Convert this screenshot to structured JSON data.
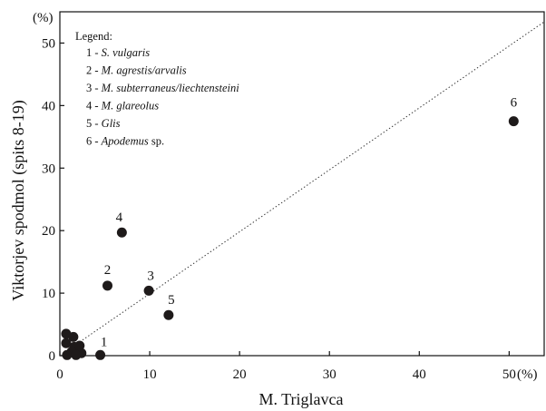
{
  "chart_data": {
    "type": "scatter",
    "title": "",
    "xlabel": "M. Triglavca",
    "ylabel": "Viktorjev spodmol (spits 8-19)",
    "x_unit_label": "(%)",
    "y_unit_label": "(%)",
    "xlim": [
      0,
      54
    ],
    "ylim": [
      0,
      55
    ],
    "x_ticks": [
      "0",
      "10",
      "20",
      "30",
      "40",
      "50"
    ],
    "y_ticks": [
      "0",
      "10",
      "20",
      "30",
      "40",
      "50"
    ],
    "grid": false,
    "legend_placement": "top-left",
    "marker_color": "#1e1a1a",
    "reference_line": {
      "style": "dotted",
      "from": [
        0,
        0
      ],
      "to": [
        54,
        53.5
      ]
    },
    "legend": {
      "heading": "Legend:",
      "entries": [
        {
          "num": "1 -",
          "name": "S. vulgaris",
          "suffix": ""
        },
        {
          "num": "2 -",
          "name": "M. agrestis/arvalis",
          "suffix": ""
        },
        {
          "num": "3 -",
          "name": "M. subterraneus/liechtensteini",
          "suffix": ""
        },
        {
          "num": "4 -",
          "name": "M. glareolus",
          "suffix": ""
        },
        {
          "num": "5 -",
          "name": "Glis",
          "suffix": ""
        },
        {
          "num": "6 -",
          "name": "Apodemus",
          "suffix": " sp."
        }
      ]
    },
    "labeled_points": [
      {
        "label": "1",
        "x": 4.5,
        "y": 0.1
      },
      {
        "label": "2",
        "x": 5.3,
        "y": 11.2
      },
      {
        "label": "3",
        "x": 9.9,
        "y": 10.4
      },
      {
        "label": "4",
        "x": 6.9,
        "y": 19.7
      },
      {
        "label": "5",
        "x": 12.1,
        "y": 6.5
      },
      {
        "label": "6",
        "x": 50.5,
        "y": 37.5
      }
    ],
    "unlabeled_points": [
      {
        "x": 0.7,
        "y": 3.5
      },
      {
        "x": 1.5,
        "y": 3.0
      },
      {
        "x": 0.7,
        "y": 2.0
      },
      {
        "x": 1.6,
        "y": 1.4
      },
      {
        "x": 2.2,
        "y": 1.6
      },
      {
        "x": 1.3,
        "y": 0.6
      },
      {
        "x": 2.4,
        "y": 0.4
      },
      {
        "x": 0.8,
        "y": 0.1
      },
      {
        "x": 1.8,
        "y": 0.1
      }
    ]
  }
}
